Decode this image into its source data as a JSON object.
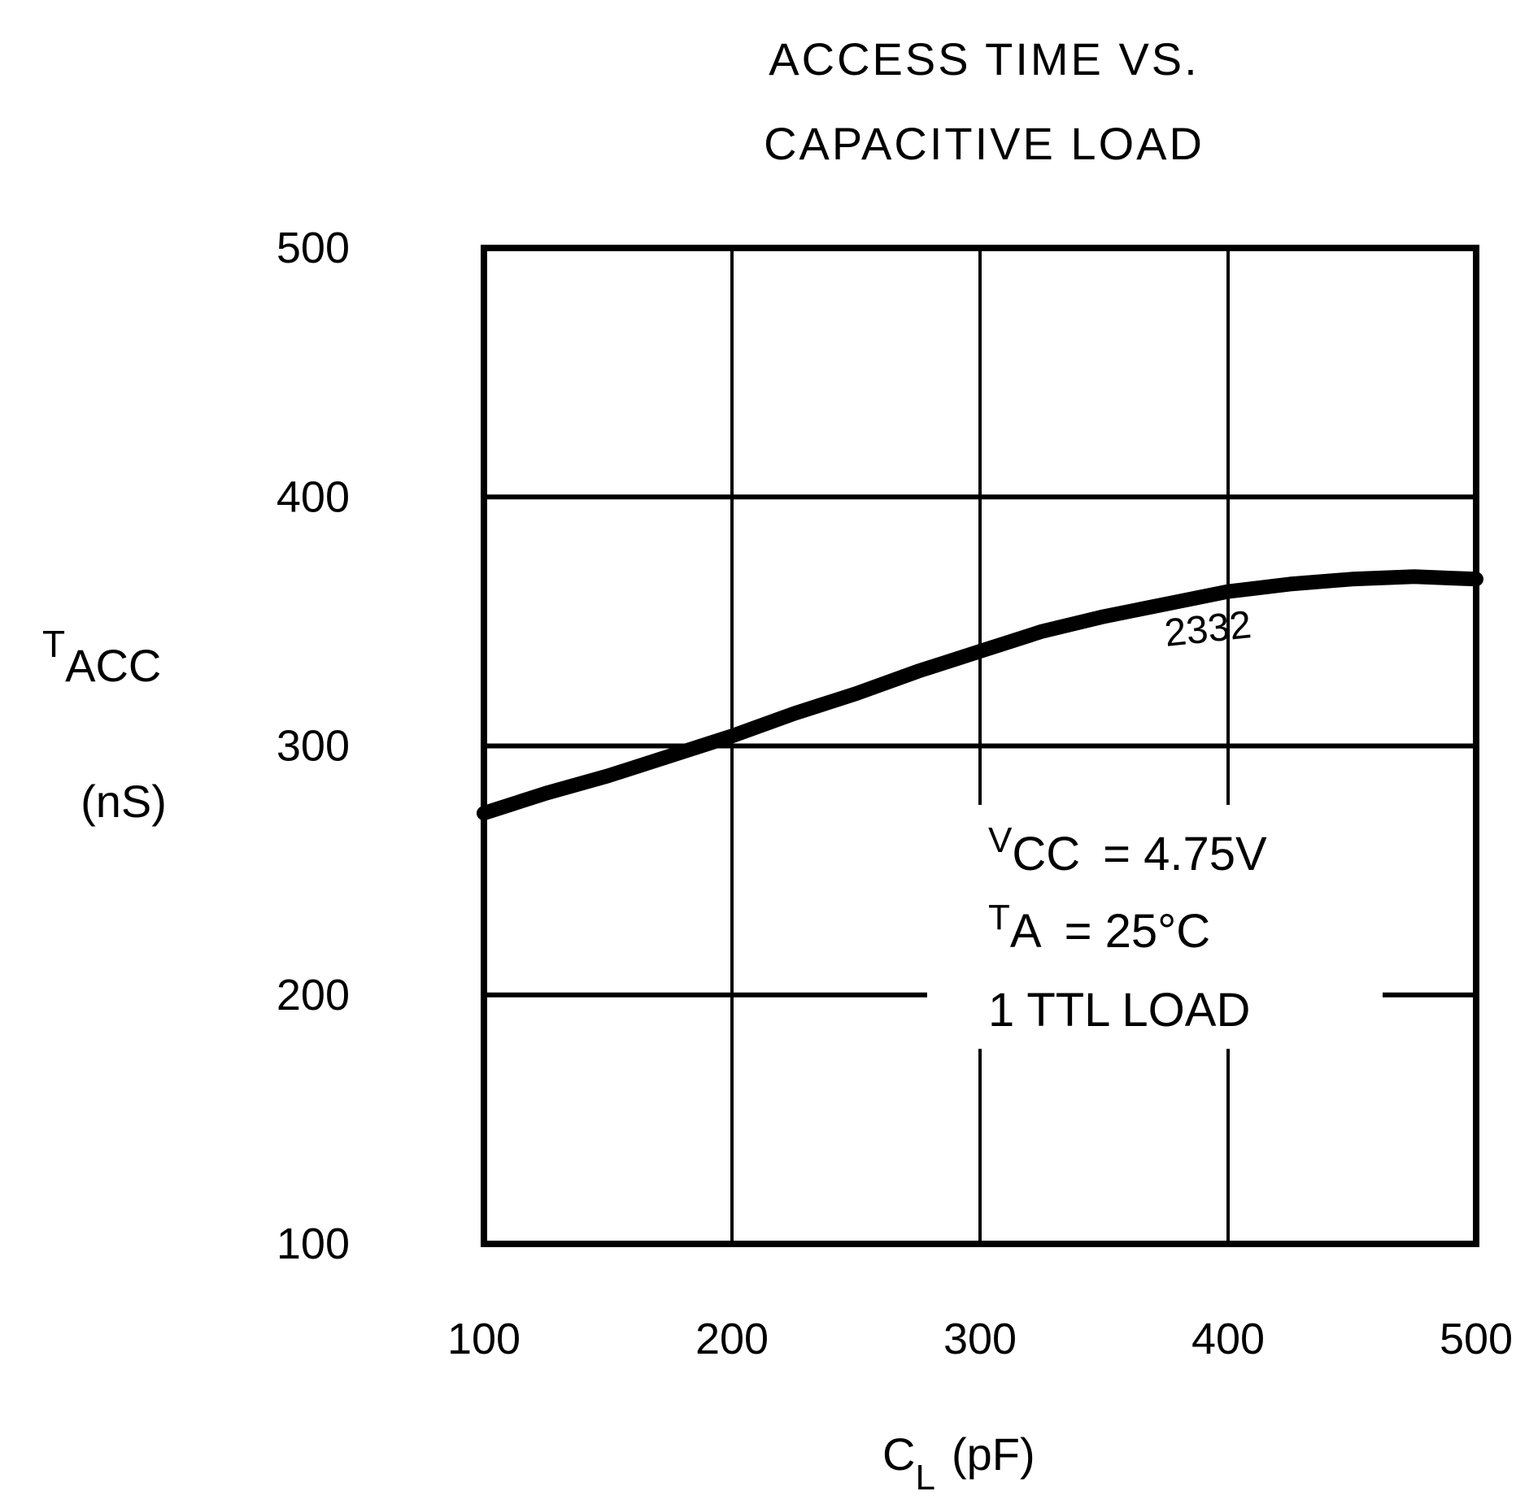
{
  "chart_data": {
    "type": "line",
    "title": [
      "ACCESS TIME VS.",
      "CAPACITIVE LOAD"
    ],
    "ylabel": {
      "main": "T",
      "sub": "ACC",
      "unit": "(nS)"
    },
    "xlabel": {
      "main": "C",
      "sub": "L",
      "unit": "(pF)"
    },
    "xlim": [
      100,
      500
    ],
    "ylim": [
      100,
      500
    ],
    "xticks": [
      100,
      200,
      300,
      400,
      500
    ],
    "yticks": [
      100,
      200,
      300,
      400,
      500
    ],
    "grid": true,
    "series": [
      {
        "name": "2332",
        "x": [
          100,
          125,
          150,
          175,
          200,
          225,
          250,
          275,
          300,
          325,
          350,
          375,
          400,
          425,
          450,
          475,
          500
        ],
        "y": [
          273,
          281,
          288,
          296,
          304,
          313,
          321,
          330,
          338,
          346,
          352,
          357,
          362,
          365,
          367,
          368,
          367
        ]
      }
    ],
    "annotations": [
      {
        "main": "V",
        "sub": "CC",
        "rest": "=  4.75V"
      },
      {
        "main": "T",
        "sub": "A",
        "rest": "=  25°C"
      },
      {
        "main": "1 TTL LOAD",
        "sub": "",
        "rest": ""
      }
    ]
  }
}
